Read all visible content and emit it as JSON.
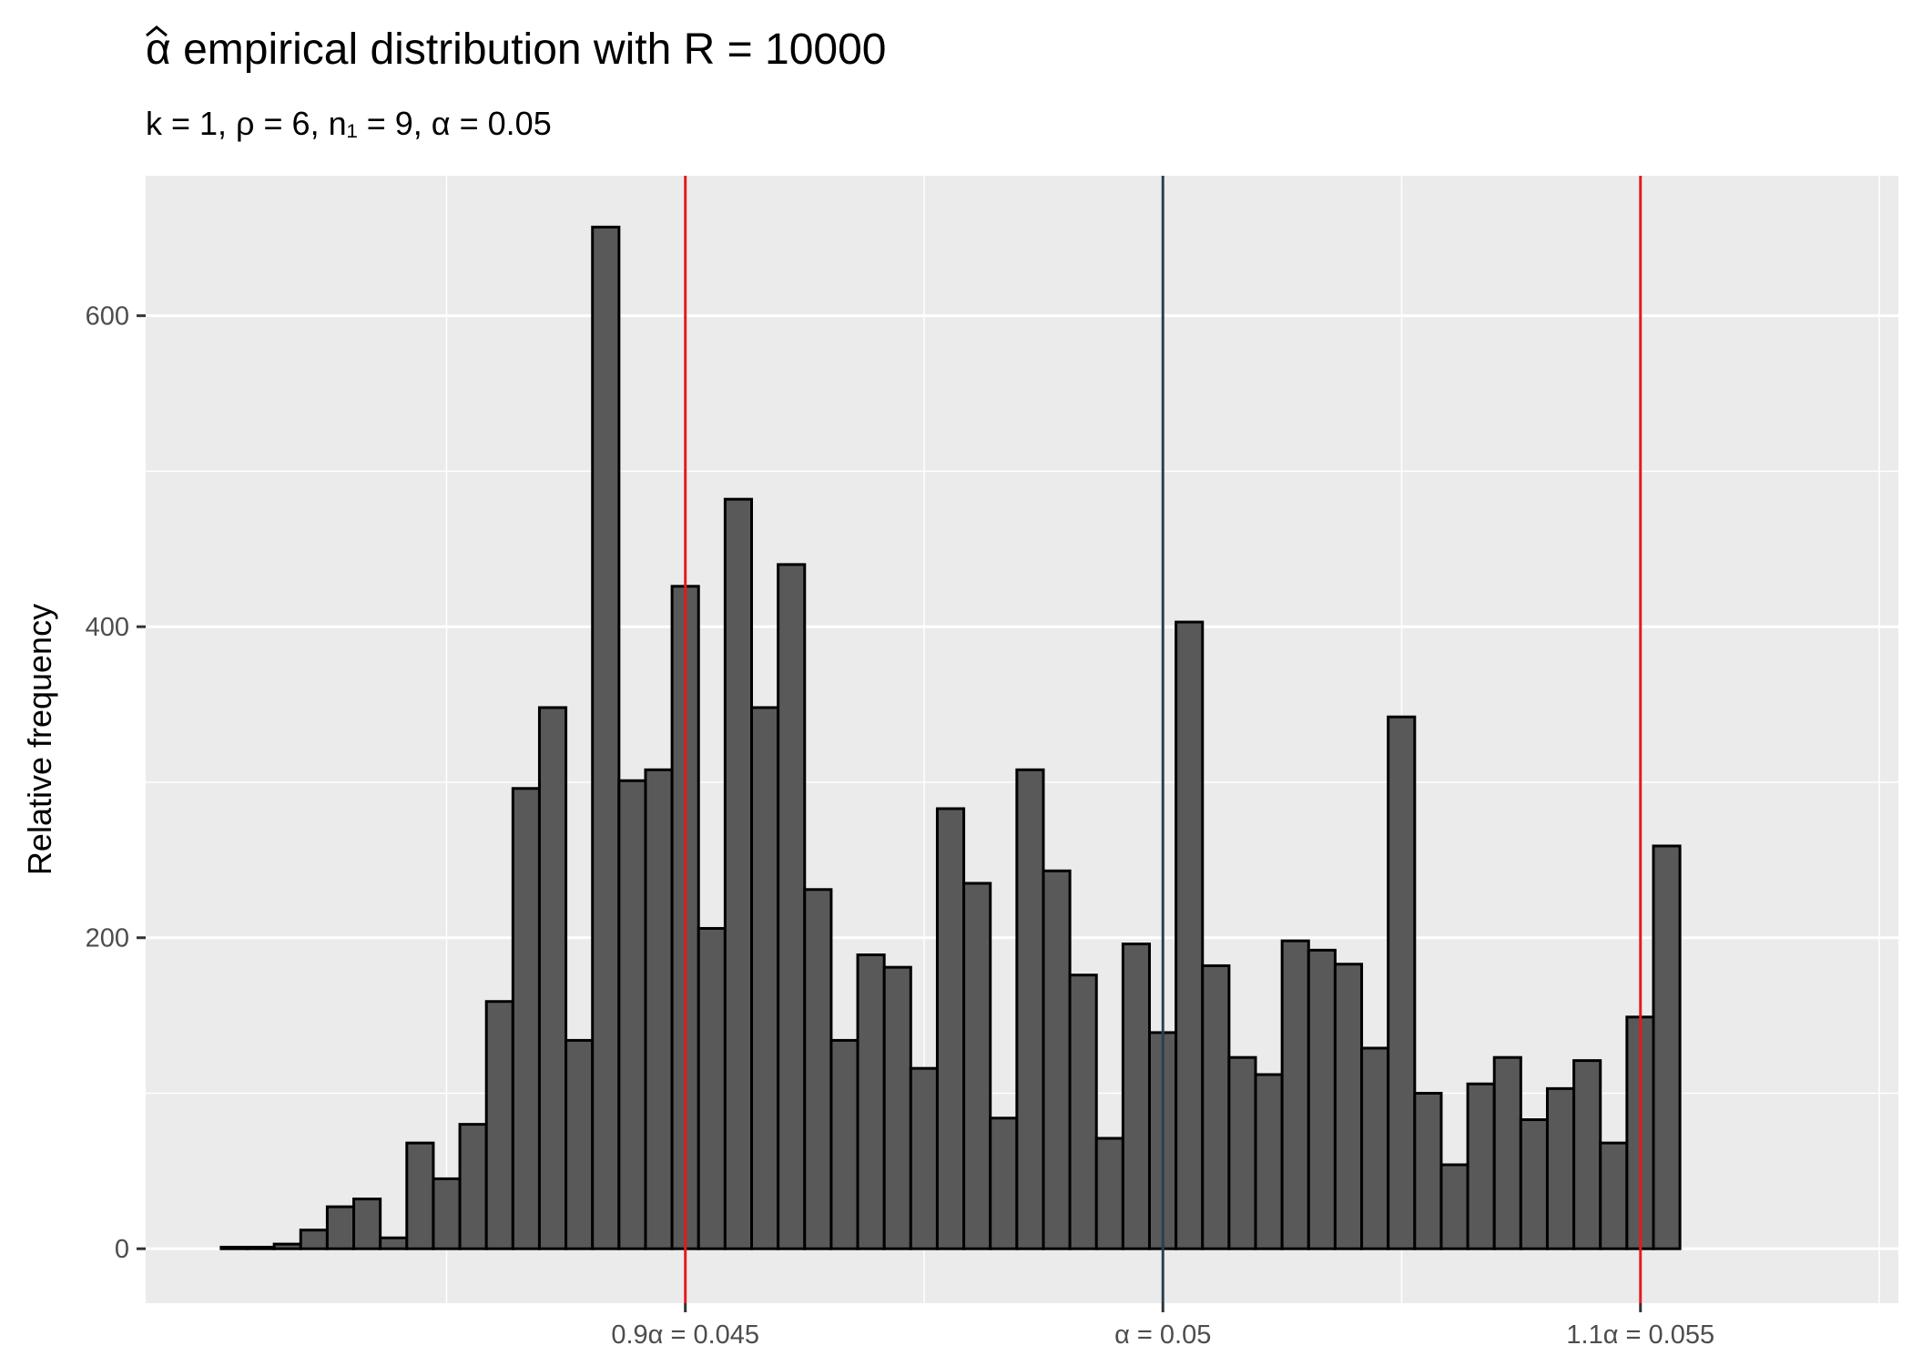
{
  "chart_data": {
    "type": "bar",
    "title_hat_symbol": "α",
    "title_text": " empirical distribution with R = 10000",
    "subtitle": "k = 1, ρ = 6, n₁ = 9, α = 0.05",
    "xlabel": "",
    "ylabel": "Relative frequency",
    "x_range": [
      0.03935,
      0.0577
    ],
    "ylim": [
      -35,
      690
    ],
    "y_ticks": [
      0,
      200,
      400,
      600
    ],
    "x_ticks": [
      {
        "value": 0.045,
        "label": "0.9α = 0.045"
      },
      {
        "value": 0.05,
        "label": "α = 0.05"
      },
      {
        "value": 0.055,
        "label": "1.1α = 0.055"
      }
    ],
    "x_minor_gridlines": [
      0.0425,
      0.0475,
      0.0525,
      0.0575
    ],
    "vertical_lines": [
      {
        "value": 0.045,
        "color": "#e41a1c"
      },
      {
        "value": 0.05,
        "color": "#2c3e50"
      },
      {
        "value": 0.055,
        "color": "#e41a1c"
      }
    ],
    "bin_start": 0.04014,
    "bin_width": 0.0002777,
    "values": [
      1,
      1,
      3,
      12,
      27,
      32,
      7,
      68,
      45,
      80,
      159,
      296,
      348,
      134,
      657,
      301,
      308,
      426,
      206,
      482,
      348,
      440,
      231,
      134,
      189,
      181,
      116,
      283,
      235,
      84,
      308,
      243,
      176,
      71,
      196,
      139,
      403,
      182,
      123,
      112,
      198,
      192,
      183,
      129,
      342,
      100,
      54,
      106,
      123,
      83,
      103,
      121,
      68,
      149,
      259
    ],
    "bar_fill": "#595959",
    "bar_stroke": "#000000",
    "panel_background": "#ebebeb",
    "grid": true
  }
}
